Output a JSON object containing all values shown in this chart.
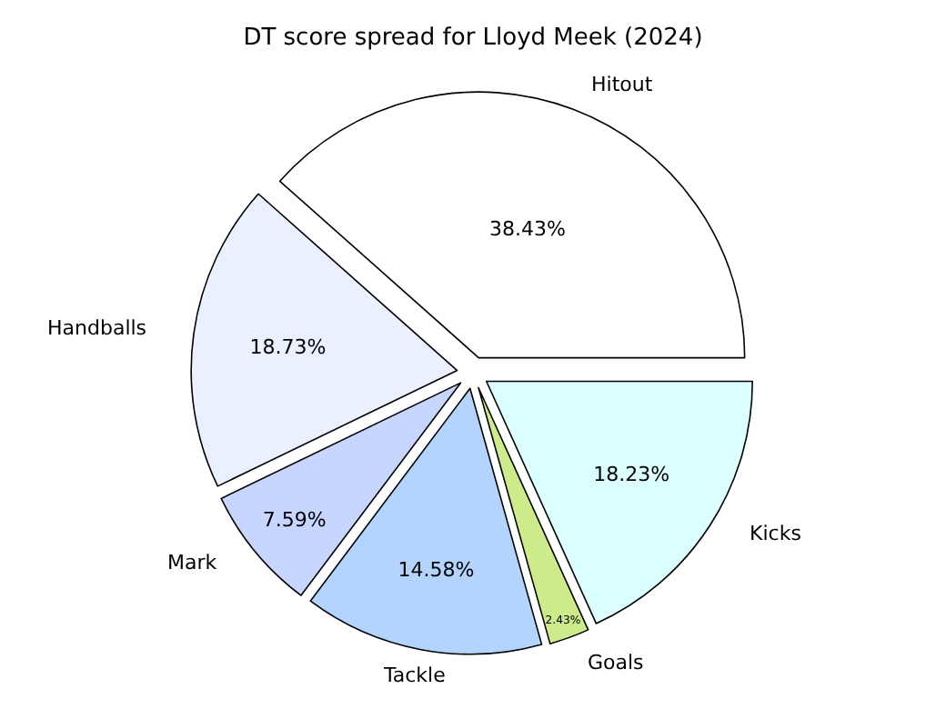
{
  "chart_data": {
    "type": "pie",
    "title": "DT score spread for Lloyd Meek (2024)",
    "categories": [
      "Hitout",
      "Handballs",
      "Mark",
      "Tackle",
      "Goals",
      "Kicks"
    ],
    "values": [
      38.43,
      18.73,
      7.59,
      14.58,
      2.43,
      18.23
    ],
    "value_labels": [
      "38.43%",
      "18.73%",
      "7.59%",
      "14.58%",
      "2.43%",
      "18.23%"
    ],
    "colors": [
      "#ffffff",
      "#eaf0ff",
      "#c6d6ff",
      "#b3d4ff",
      "#cdeb8b",
      "#dbffff"
    ],
    "legend": false
  }
}
